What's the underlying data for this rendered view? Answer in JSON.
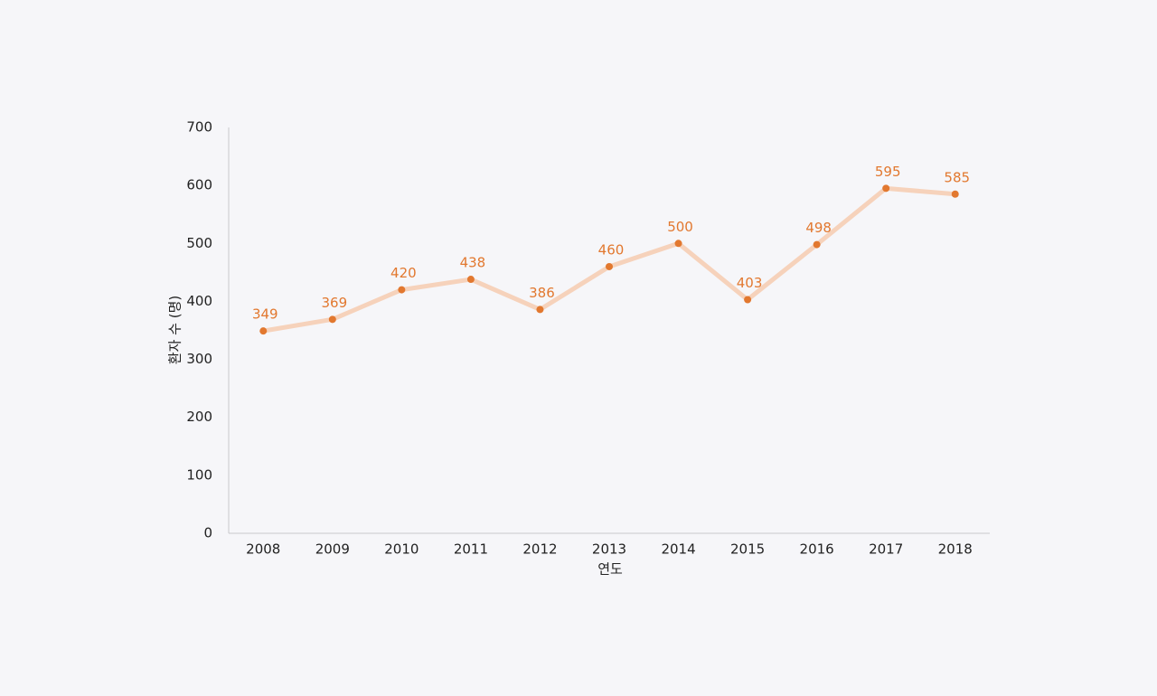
{
  "chart_data": {
    "type": "line",
    "x_label": "연도",
    "y_label": "환자 수 (명)",
    "categories": [
      "2008",
      "2009",
      "2010",
      "2011",
      "2012",
      "2013",
      "2014",
      "2015",
      "2016",
      "2017",
      "2018"
    ],
    "values": [
      349,
      369,
      420,
      438,
      386,
      460,
      500,
      403,
      498,
      595,
      585
    ],
    "color": "#f6d2bb",
    "marker_color": "#e2782f",
    "label_color": "#e2782f",
    "ylim": [
      0,
      700
    ],
    "yticks": [
      0,
      100,
      200,
      300,
      400,
      500,
      600,
      700
    ],
    "grid": false
  }
}
